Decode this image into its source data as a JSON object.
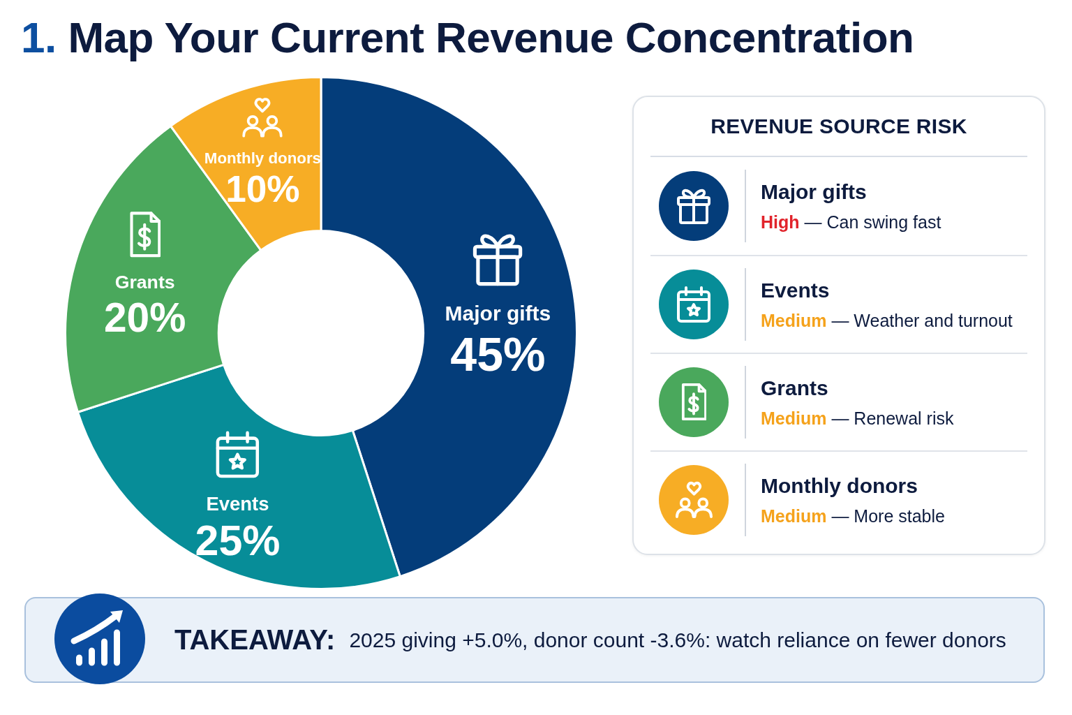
{
  "chart_data": [
    {
      "type": "donut",
      "title": "1. Map Your Current Revenue Concentration",
      "categories": [
        "Major gifts",
        "Events",
        "Grants",
        "Monthly donors"
      ],
      "values": [
        45,
        25,
        20,
        10
      ],
      "colors": [
        "#043d7a",
        "#078d98",
        "#4aa85c",
        "#f7ad25"
      ],
      "value_labels": [
        "45%",
        "25%",
        "20%",
        "10%"
      ],
      "annotations": [
        "TAKEAWAY: 2025 giving +5.0%, donor count -3.6%: watch reliance on fewer donors"
      ]
    },
    {
      "type": "other",
      "title": "REVENUE SOURCE RISK",
      "categories": [
        "Major gifts",
        "Events",
        "Grants",
        "Monthly donors"
      ],
      "annotations": [
        "High — Can swing fast",
        "Medium — Weather and turnout",
        "Medium — Renewal risk",
        "Medium — More stable"
      ]
    }
  ]
}
